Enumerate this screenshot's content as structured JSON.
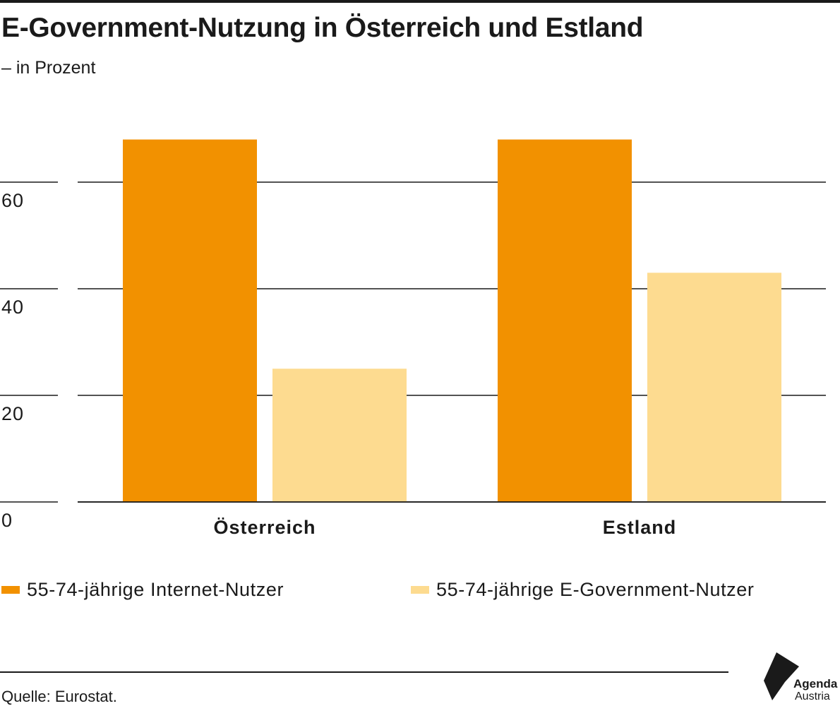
{
  "header": {
    "title": "E-Government-Nutzung in Österreich und Estland",
    "subtitle": "– in Prozent"
  },
  "chart_data": {
    "type": "bar",
    "title": "E-Government-Nutzung in Österreich und Estland",
    "subtitle": "– in Prozent",
    "categories": [
      "Österreich",
      "Estland"
    ],
    "series": [
      {
        "name": "55-74-jährige Internet-Nutzer",
        "values": [
          68,
          68
        ],
        "color": "#f29100"
      },
      {
        "name": "55-74-jährige E-Government-Nutzer",
        "values": [
          25,
          43
        ],
        "color": "#fddb90"
      }
    ],
    "y_ticks": [
      0,
      20,
      40,
      60
    ],
    "ylim": [
      0,
      70
    ],
    "grid": true,
    "legend_position": "bottom"
  },
  "footer": {
    "source": "Quelle: Eurostat."
  },
  "logo": {
    "line1": "Agenda",
    "line2": "Austria"
  }
}
